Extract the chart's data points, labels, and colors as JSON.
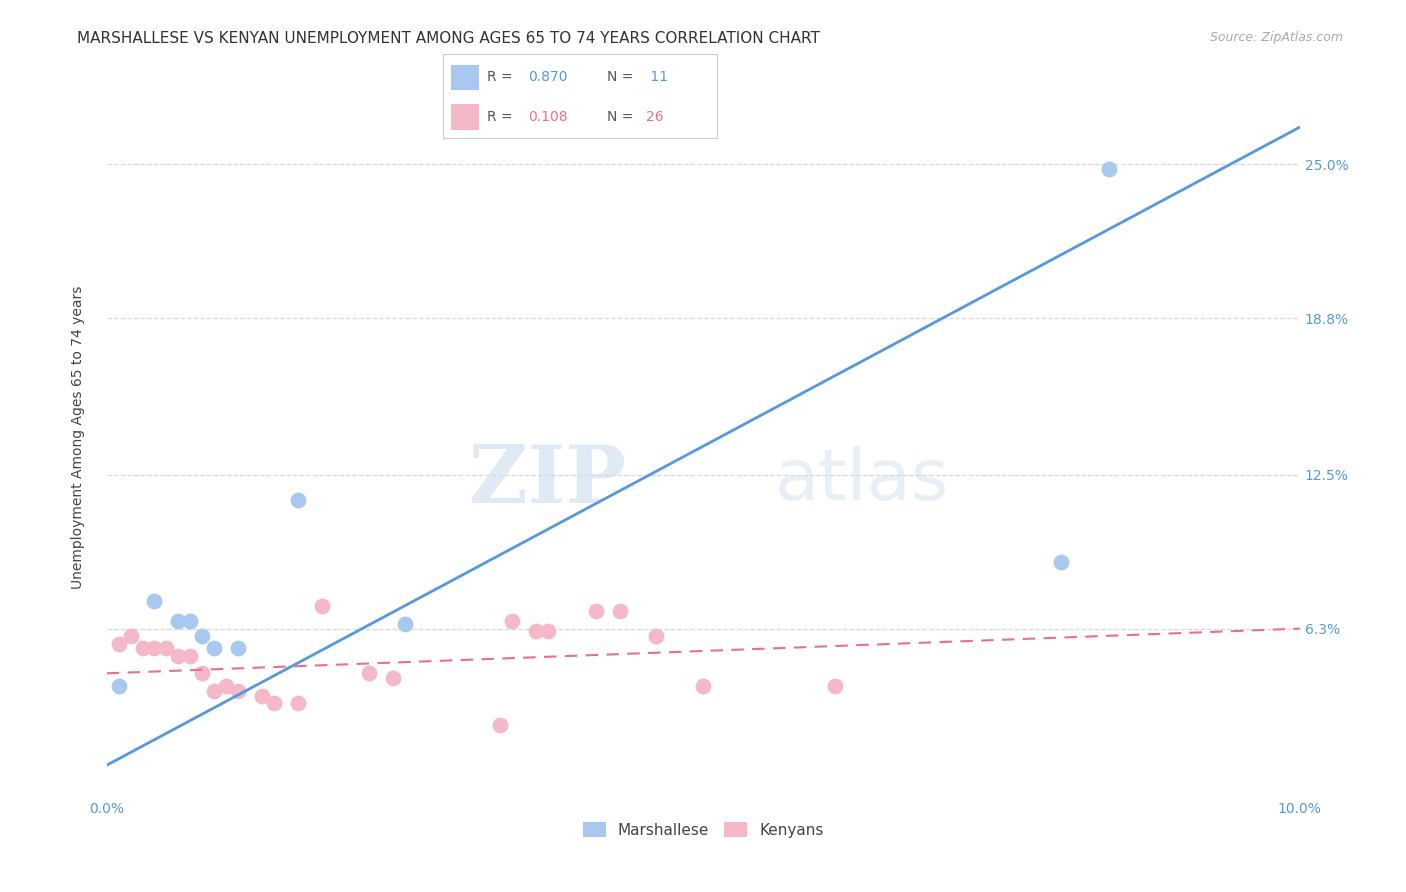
{
  "title": "MARSHALLESE VS KENYAN UNEMPLOYMENT AMONG AGES 65 TO 74 YEARS CORRELATION CHART",
  "source": "Source: ZipAtlas.com",
  "ylabel": "Unemployment Among Ages 65 to 74 years",
  "xlim": [
    0.0,
    0.1
  ],
  "ylim": [
    -0.005,
    0.285
  ],
  "yticks": [
    0.063,
    0.125,
    0.188,
    0.25
  ],
  "ytick_labels": [
    "6.3%",
    "12.5%",
    "18.8%",
    "25.0%"
  ],
  "xticks": [
    0.0,
    0.02,
    0.04,
    0.06,
    0.08,
    0.1
  ],
  "xtick_labels": [
    "0.0%",
    "",
    "",
    "",
    "",
    "10.0%"
  ],
  "background_color": "#ffffff",
  "grid_color": "#d8d8d8",
  "marshallese_color": "#a8c8f0",
  "kenyans_color": "#f5b8c8",
  "marshallese_line_color": "#5599dd",
  "kenyans_line_color": "#e8708a",
  "marshallese_points_x": [
    0.001,
    0.004,
    0.006,
    0.007,
    0.008,
    0.009,
    0.011,
    0.016,
    0.025,
    0.08,
    0.084
  ],
  "marshallese_points_y": [
    0.04,
    0.074,
    0.066,
    0.066,
    0.06,
    0.055,
    0.055,
    0.115,
    0.065,
    0.09,
    0.248
  ],
  "kenyans_points_x": [
    0.001,
    0.002,
    0.003,
    0.004,
    0.005,
    0.006,
    0.007,
    0.008,
    0.009,
    0.01,
    0.011,
    0.013,
    0.014,
    0.016,
    0.018,
    0.022,
    0.024,
    0.033,
    0.034,
    0.036,
    0.037,
    0.041,
    0.043,
    0.046,
    0.05,
    0.061
  ],
  "kenyans_points_y": [
    0.057,
    0.06,
    0.055,
    0.055,
    0.055,
    0.052,
    0.052,
    0.045,
    0.038,
    0.04,
    0.038,
    0.036,
    0.033,
    0.033,
    0.072,
    0.045,
    0.043,
    0.024,
    0.066,
    0.062,
    0.062,
    0.07,
    0.07,
    0.06,
    0.04,
    0.04
  ],
  "marshallese_trendline_x": [
    0.0,
    0.1
  ],
  "marshallese_trendline_y": [
    0.008,
    0.265
  ],
  "kenyans_trendline_x": [
    0.0,
    0.1
  ],
  "kenyans_trendline_y": [
    0.045,
    0.063
  ],
  "watermark_zip": "ZIP",
  "watermark_atlas": "atlas",
  "title_fontsize": 11,
  "axis_label_fontsize": 10,
  "tick_fontsize": 10,
  "legend_r1": "0.870",
  "legend_n1": " 11",
  "legend_r2": "0.108",
  "legend_n2": "26"
}
